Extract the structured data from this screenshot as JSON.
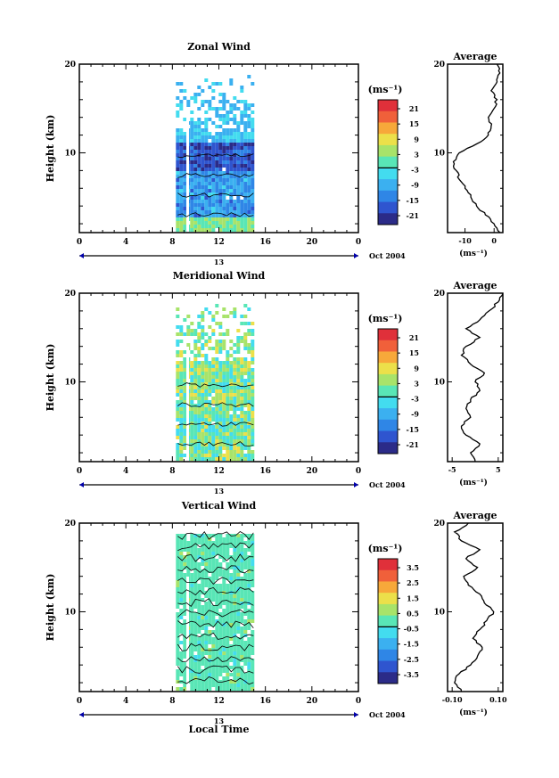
{
  "figure": {
    "xlabel": "Local Time",
    "date_day": "13",
    "date_month": "Oct 2004"
  },
  "chart_data": [
    {
      "type": "heatmap",
      "title": "Zonal Wind",
      "ylabel": "Height (km)",
      "x_ticks": [
        "0",
        "4",
        "8",
        "12",
        "16",
        "20",
        "0"
      ],
      "xlim": [
        0,
        24
      ],
      "y_ticks": [
        "20",
        "10"
      ],
      "ylim": [
        1,
        20
      ],
      "data_x_range": [
        8,
        15
      ],
      "colorbar": {
        "unit_label": "(ms⁻¹)",
        "ticks": [
          "21",
          "15",
          "9",
          "3",
          "-3",
          "-9",
          "-15",
          "-21"
        ],
        "range": [
          -24,
          24
        ],
        "colors": [
          "#2b2b88",
          "#2f55cf",
          "#2f86e6",
          "#3bb0f0",
          "#43dcef",
          "#59e6b6",
          "#a8e36a",
          "#ece04a",
          "#f7a83a",
          "#f0603a",
          "#e0303a"
        ]
      },
      "average": {
        "title": "Average",
        "x_ticks": [
          "-10",
          "0"
        ],
        "xlim": [
          -16,
          3
        ],
        "x_unit": "(ms⁻¹)",
        "y_ticks": [
          "20",
          "10"
        ],
        "height": [
          1,
          2,
          3,
          4,
          5,
          6,
          7,
          8,
          9,
          10,
          11,
          12,
          13,
          14,
          15,
          16,
          17,
          18,
          19,
          20
        ],
        "values": [
          2,
          0,
          -3,
          -6,
          -8,
          -10,
          -12,
          -13,
          -14,
          -12,
          -6,
          -2,
          -1,
          -2,
          0,
          1,
          -1,
          1,
          2,
          1
        ]
      }
    },
    {
      "type": "heatmap",
      "title": "Meridional Wind",
      "ylabel": "Height (km)",
      "x_ticks": [
        "0",
        "4",
        "8",
        "12",
        "16",
        "20",
        "0"
      ],
      "xlim": [
        0,
        24
      ],
      "y_ticks": [
        "20",
        "10"
      ],
      "ylim": [
        1,
        20
      ],
      "data_x_range": [
        8,
        15
      ],
      "colorbar": {
        "unit_label": "(ms⁻¹)",
        "ticks": [
          "21",
          "15",
          "9",
          "3",
          "-3",
          "-9",
          "-15",
          "-21"
        ],
        "range": [
          -24,
          24
        ],
        "colors": [
          "#2b2b88",
          "#2f55cf",
          "#2f86e6",
          "#3bb0f0",
          "#43dcef",
          "#59e6b6",
          "#a8e36a",
          "#ece04a",
          "#f7a83a",
          "#f0603a",
          "#e0303a"
        ]
      },
      "average": {
        "title": "Average",
        "x_ticks": [
          "-5",
          "5"
        ],
        "xlim": [
          -6,
          6
        ],
        "x_unit": "(ms⁻¹)",
        "y_ticks": [
          "20",
          "10"
        ],
        "height": [
          1,
          2,
          3,
          4,
          5,
          6,
          7,
          8,
          9,
          10,
          11,
          12,
          13,
          14,
          15,
          16,
          17,
          18,
          19,
          20
        ],
        "values": [
          0,
          -1,
          1,
          -2,
          -3,
          -1,
          -2,
          -1,
          1,
          0,
          2,
          -1,
          -3,
          -2,
          1,
          -2,
          1,
          3,
          5,
          6
        ]
      }
    },
    {
      "type": "heatmap",
      "title": "Vertical Wind",
      "ylabel": "Height (km)",
      "x_ticks": [
        "0",
        "4",
        "8",
        "12",
        "16",
        "20",
        "0"
      ],
      "xlim": [
        0,
        24
      ],
      "y_ticks": [
        "20",
        "10"
      ],
      "ylim": [
        1,
        20
      ],
      "data_x_range": [
        8,
        15
      ],
      "colorbar": {
        "unit_label": "(ms⁻¹)",
        "ticks": [
          "3.5",
          "2.5",
          "1.5",
          "0.5",
          "-0.5",
          "-1.5",
          "-2.5",
          "-3.5"
        ],
        "range": [
          -4,
          4
        ],
        "colors": [
          "#2b2b88",
          "#2f55cf",
          "#2f86e6",
          "#3bb0f0",
          "#43dcef",
          "#59e6b6",
          "#a8e36a",
          "#ece04a",
          "#f7a83a",
          "#f0603a",
          "#e0303a"
        ]
      },
      "average": {
        "title": "Average",
        "x_ticks": [
          "-0.10",
          "0.10"
        ],
        "xlim": [
          -0.12,
          0.12
        ],
        "x_unit": "(ms⁻¹)",
        "y_ticks": [
          "20",
          "10"
        ],
        "height": [
          1,
          2,
          3,
          4,
          5,
          6,
          7,
          8,
          9,
          10,
          11,
          12,
          13,
          14,
          15,
          16,
          17,
          18,
          19,
          20
        ],
        "values": [
          -0.06,
          -0.09,
          -0.07,
          -0.02,
          0.01,
          0.03,
          -0.01,
          0.02,
          0.05,
          0.08,
          0.04,
          0.02,
          -0.03,
          -0.05,
          0.01,
          -0.04,
          0.02,
          -0.06,
          -0.09,
          -0.03
        ]
      }
    }
  ]
}
